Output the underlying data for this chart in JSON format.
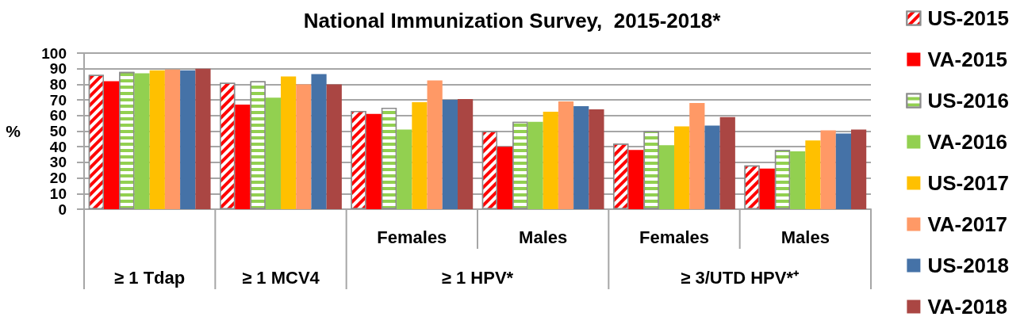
{
  "chart_data": {
    "type": "bar",
    "title": "National Immunization Survey,  2015-2018*",
    "ylabel": "%",
    "categories": [
      null,
      null,
      "Females",
      "Males",
      "Females",
      "Males"
    ],
    "annotations": [
      "≥ 1 Tdap",
      "≥ 1 MCV4",
      "≥ 1 HPV*",
      "≥ 3/UTD HPV*⁺"
    ],
    "series": [
      {
        "name": "US-2015",
        "color": "#ff0000",
        "values": [
          86,
          81,
          63,
          50,
          42,
          28
        ]
      },
      {
        "name": "VA-2015",
        "color": "#ff0000",
        "values": [
          82,
          67,
          61,
          40,
          38,
          26
        ]
      },
      {
        "name": "US-2016",
        "color": "#92d050",
        "values": [
          88,
          82,
          65,
          56,
          50,
          38
        ]
      },
      {
        "name": "VA-2016",
        "color": "#92d050",
        "values": [
          87,
          71.5,
          51,
          56,
          41,
          37
        ]
      },
      {
        "name": "US-2017",
        "color": "#ffc000",
        "values": [
          89,
          85,
          68.5,
          62.5,
          53,
          44
        ]
      },
      {
        "name": "VA-2017",
        "color": "#ff9966",
        "values": [
          89.5,
          80,
          82.5,
          69,
          68,
          50.5
        ]
      },
      {
        "name": "US-2018",
        "color": "#4572a7",
        "values": [
          89,
          86.5,
          70,
          66,
          53.5,
          48.5
        ]
      },
      {
        "name": "VA-2018",
        "color": "#aa4643",
        "values": [
          90,
          80,
          70.5,
          64,
          59,
          51
        ]
      }
    ],
    "ylim": [
      0,
      100
    ],
    "yticks": [
      0,
      10,
      20,
      30,
      40,
      50,
      60,
      70,
      80,
      90,
      100
    ],
    "grid": "y",
    "legend": "right"
  }
}
